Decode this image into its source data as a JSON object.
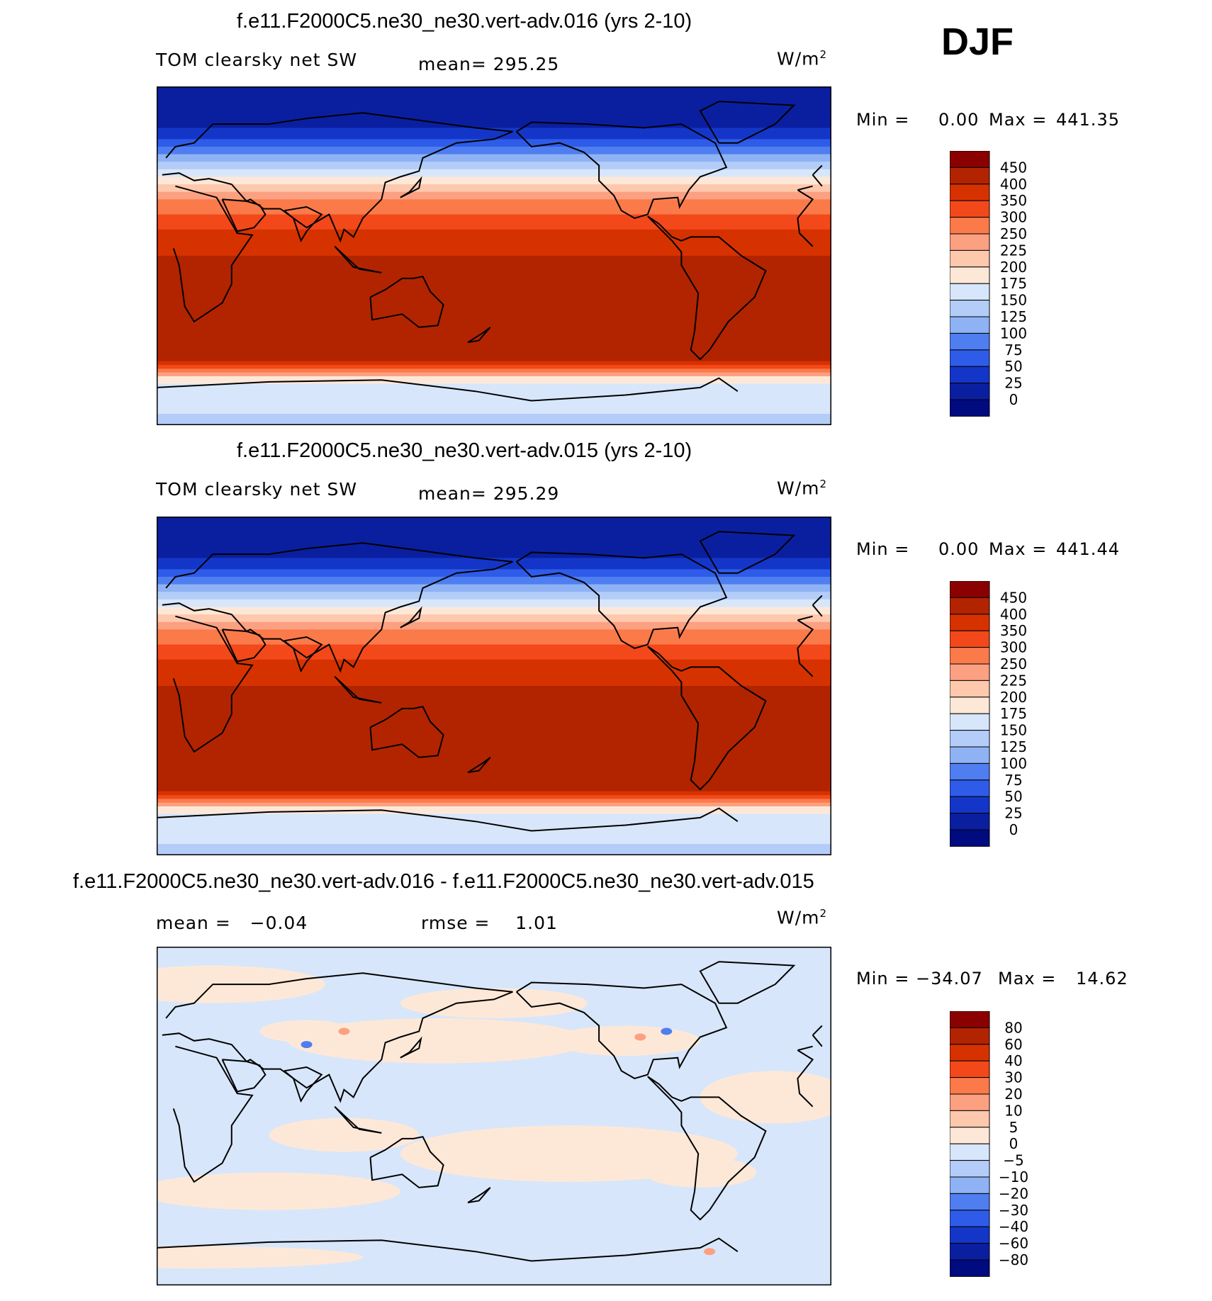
{
  "season": "DJF",
  "chart_data": [
    {
      "type": "heatmap",
      "title": "f.e11.F2000C5.ne30_ne30.vert-adv.016 (yrs 2-10)",
      "variable": "TOM clearsky net SW",
      "stat_text": "mean= 295.25",
      "mean": 295.25,
      "units": "W/m",
      "units_sup": "2",
      "min_label": "Min =",
      "min_value": "0.00",
      "max_label": "Max =",
      "max_value": "441.35",
      "min": 0.0,
      "max": 441.35,
      "colorbar": {
        "levels": [
          "450",
          "400",
          "350",
          "300",
          "250",
          "225",
          "200",
          "175",
          "150",
          "125",
          "100",
          "75",
          "50",
          "25",
          "0"
        ],
        "colors": [
          "#8b0000",
          "#b22400",
          "#d63200",
          "#f2481a",
          "#fb7a4a",
          "#fca082",
          "#fec8ad",
          "#fde8d8",
          "#d7e6fa",
          "#b3cdf8",
          "#8fb2f5",
          "#4f7ef0",
          "#2e5ce8",
          "#1436c8",
          "#0a1fa0",
          "#000b80"
        ]
      },
      "latitude_bands": [
        {
          "lat": 90,
          "value": 0
        },
        {
          "lat": 70,
          "value": 20
        },
        {
          "lat": 60,
          "value": 60
        },
        {
          "lat": 50,
          "value": 120
        },
        {
          "lat": 40,
          "value": 190
        },
        {
          "lat": 30,
          "value": 250
        },
        {
          "lat": 20,
          "value": 320
        },
        {
          "lat": 10,
          "value": 370
        },
        {
          "lat": 0,
          "value": 400
        },
        {
          "lat": -20,
          "value": 420
        },
        {
          "lat": -55,
          "value": 425
        },
        {
          "lat": -60,
          "value": 300
        },
        {
          "lat": -65,
          "value": 180
        },
        {
          "lat": -90,
          "value": 140
        }
      ]
    },
    {
      "type": "heatmap",
      "title": "f.e11.F2000C5.ne30_ne30.vert-adv.015 (yrs 2-10)",
      "variable": "TOM clearsky net SW",
      "stat_text": "mean= 295.29",
      "mean": 295.29,
      "units": "W/m",
      "units_sup": "2",
      "min_label": "Min =",
      "min_value": "0.00",
      "max_label": "Max =",
      "max_value": "441.44",
      "min": 0.0,
      "max": 441.44,
      "colorbar": {
        "levels": [
          "450",
          "400",
          "350",
          "300",
          "250",
          "225",
          "200",
          "175",
          "150",
          "125",
          "100",
          "75",
          "50",
          "25",
          "0"
        ],
        "colors": [
          "#8b0000",
          "#b22400",
          "#d63200",
          "#f2481a",
          "#fb7a4a",
          "#fca082",
          "#fec8ad",
          "#fde8d8",
          "#d7e6fa",
          "#b3cdf8",
          "#8fb2f5",
          "#4f7ef0",
          "#2e5ce8",
          "#1436c8",
          "#0a1fa0",
          "#000b80"
        ]
      },
      "latitude_bands": [
        {
          "lat": 90,
          "value": 0
        },
        {
          "lat": 70,
          "value": 20
        },
        {
          "lat": 60,
          "value": 60
        },
        {
          "lat": 50,
          "value": 120
        },
        {
          "lat": 40,
          "value": 190
        },
        {
          "lat": 30,
          "value": 250
        },
        {
          "lat": 20,
          "value": 320
        },
        {
          "lat": 10,
          "value": 370
        },
        {
          "lat": 0,
          "value": 400
        },
        {
          "lat": -20,
          "value": 420
        },
        {
          "lat": -55,
          "value": 425
        },
        {
          "lat": -60,
          "value": 300
        },
        {
          "lat": -65,
          "value": 180
        },
        {
          "lat": -90,
          "value": 140
        }
      ]
    },
    {
      "type": "heatmap",
      "title": "f.e11.F2000C5.ne30_ne30.vert-adv.016 - f.e11.F2000C5.ne30_ne30.vert-adv.015",
      "stat_text": "mean =   −0.04",
      "stat2_text": "rmse =    1.01",
      "mean": -0.04,
      "rmse": 1.01,
      "units": "W/m",
      "units_sup": "2",
      "min_label": "Min = −34.07",
      "min_value": "",
      "max_label": "Max =",
      "max_value": "14.62",
      "min": -34.07,
      "max": 14.62,
      "colorbar": {
        "levels": [
          "80",
          "60",
          "40",
          "30",
          "20",
          "10",
          "5",
          "0",
          "−5",
          "−10",
          "−20",
          "−30",
          "−40",
          "−60",
          "−80"
        ],
        "colors": [
          "#8b0000",
          "#b22400",
          "#d63200",
          "#f2481a",
          "#fb7a4a",
          "#fca082",
          "#fec8ad",
          "#fde8d8",
          "#d7e6fa",
          "#b3cdf8",
          "#8fb2f5",
          "#4f7ef0",
          "#2e5ce8",
          "#1436c8",
          "#0a1fa0",
          "#000b80"
        ]
      }
    }
  ]
}
